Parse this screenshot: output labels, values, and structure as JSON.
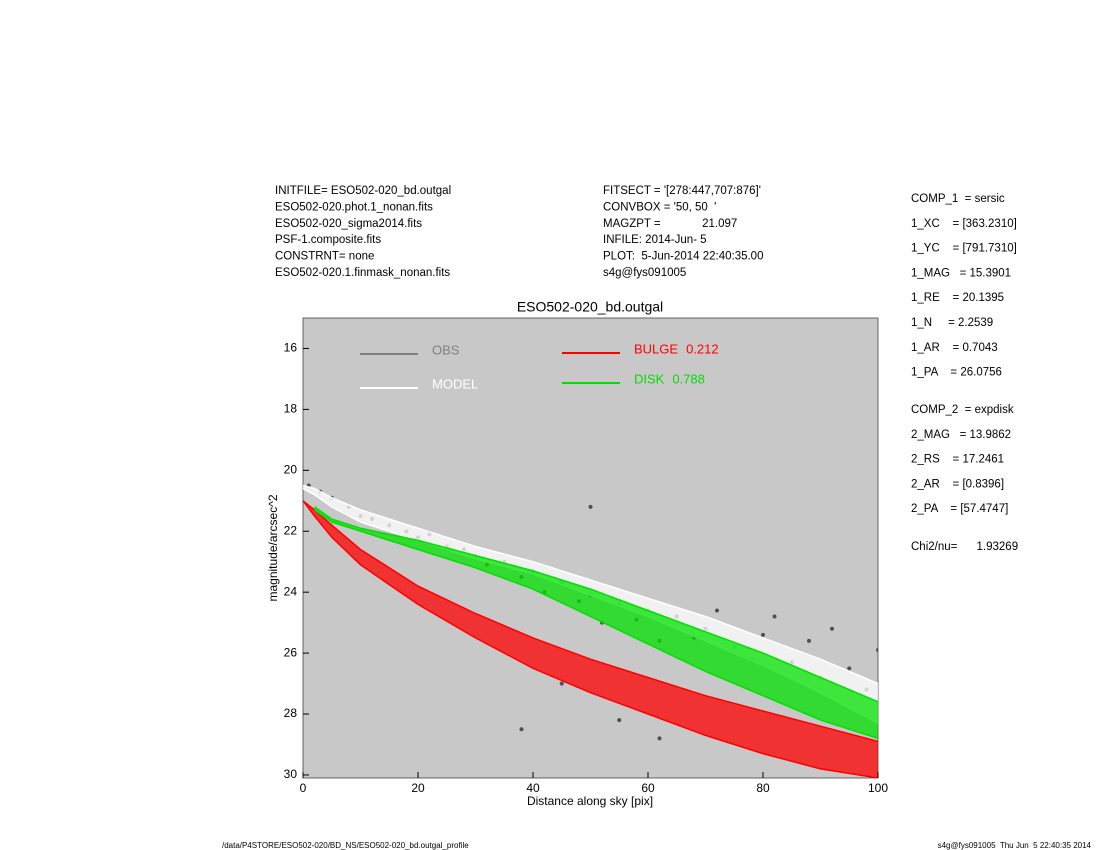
{
  "chart_data": {
    "type": "band-scatter",
    "title": "ESO502-020_bd.outgal",
    "x_label": "Distance along sky [pix]",
    "y_label": "magnitude/arcsec^2",
    "xlim": [
      0,
      100
    ],
    "xticks": [
      0,
      20,
      40,
      60,
      80,
      100
    ],
    "ylim": [
      15,
      30.1
    ],
    "yticks": [
      16,
      18,
      20,
      22,
      24,
      26,
      28,
      30
    ],
    "y_inverted": true,
    "background": "#c8c8c8",
    "series": [
      {
        "name": "OBS",
        "color": "#505050",
        "legend_color": "#808080",
        "style": "scatter",
        "x": [
          1,
          3,
          5,
          8,
          10,
          12,
          15,
          18,
          20,
          22,
          25,
          28,
          30,
          32,
          35,
          38,
          40,
          42,
          45,
          48,
          50,
          52,
          55,
          58,
          60,
          62,
          65,
          68,
          70,
          72,
          75,
          78,
          80,
          82,
          85,
          88,
          90,
          92,
          95,
          98,
          100,
          55,
          62,
          45,
          50,
          38
        ],
        "values": [
          20.5,
          20.7,
          20.9,
          21.2,
          21.5,
          21.6,
          21.8,
          22.0,
          22.2,
          22.1,
          22.5,
          22.6,
          22.8,
          23.1,
          23.0,
          23.5,
          23.3,
          24.0,
          23.7,
          24.3,
          24.1,
          25.0,
          24.4,
          24.9,
          24.6,
          25.6,
          24.8,
          25.5,
          25.2,
          24.6,
          25.8,
          26.2,
          25.4,
          24.8,
          26.3,
          25.6,
          26.8,
          25.2,
          26.5,
          27.2,
          25.9,
          28.2,
          28.8,
          27.0,
          21.2,
          28.5
        ]
      },
      {
        "name": "MODEL",
        "color": "#ffffff",
        "style": "band",
        "x": [
          0,
          2,
          5,
          10,
          20,
          30,
          40,
          50,
          60,
          70,
          80,
          90,
          100
        ],
        "bright": [
          20.5,
          20.6,
          20.9,
          21.3,
          21.9,
          22.5,
          23.0,
          23.6,
          24.2,
          24.8,
          25.5,
          26.2,
          27.0
        ],
        "faint": [
          20.6,
          20.8,
          21.2,
          21.7,
          22.3,
          22.9,
          23.4,
          24.1,
          24.8,
          25.6,
          26.4,
          27.3,
          28.3
        ]
      },
      {
        "name": "BULGE",
        "fraction": 0.212,
        "color": "#ff0000",
        "style": "band",
        "x": [
          0,
          2,
          5,
          10,
          20,
          30,
          40,
          50,
          60,
          70,
          80,
          90,
          100
        ],
        "bright": [
          21.0,
          21.3,
          21.8,
          22.6,
          23.8,
          24.7,
          25.5,
          26.2,
          26.8,
          27.4,
          27.9,
          28.4,
          28.9
        ],
        "faint": [
          21.0,
          21.5,
          22.2,
          23.1,
          24.4,
          25.5,
          26.5,
          27.3,
          28.0,
          28.7,
          29.3,
          29.8,
          30.1
        ]
      },
      {
        "name": "DISK",
        "fraction": 0.788,
        "color": "#00e000",
        "style": "band",
        "x": [
          0,
          2,
          5,
          10,
          20,
          30,
          40,
          50,
          60,
          70,
          80,
          90,
          100
        ],
        "bright": [
          null,
          21.2,
          21.6,
          21.9,
          22.3,
          22.8,
          23.3,
          23.9,
          24.6,
          25.3,
          26.0,
          26.8,
          27.6
        ],
        "faint": [
          null,
          21.3,
          21.7,
          22.0,
          22.6,
          23.2,
          23.9,
          24.8,
          25.7,
          26.6,
          27.4,
          28.2,
          28.8
        ]
      }
    ]
  },
  "header": {
    "left": [
      "INITFILE= ESO502-020_bd.outgal",
      "ESO502-020.phot.1_nonan.fits",
      "ESO502-020_sigma2014.fits",
      "PSF-1.composite.fits",
      "CONSTRNT= none",
      "ESO502-020.1.finmask_nonan.fits"
    ],
    "middle": [
      "FITSECT = '[278:447,707:876]'",
      "CONVBOX = '50, 50  '",
      "MAGZPT =             21.097",
      "INFILE: 2014-Jun- 5",
      "PLOT:  5-Jun-2014 22:40:35.00",
      "s4g@fys091005"
    ],
    "comp1": [
      "COMP_1  = sersic",
      "1_XC    = [363.2310]",
      "1_YC    = [791.7310]",
      "1_MAG   = 15.3901",
      "1_RE    = 20.1395",
      "1_N     = 2.2539",
      "1_AR    = 0.7043",
      "1_PA    = 26.0756"
    ],
    "comp2": [
      "COMP_2  = expdisk",
      "2_MAG   = 13.9862",
      "2_RS    = 17.2461",
      "2_AR    = [0.8396]",
      "2_PA    = [57.4747]"
    ],
    "chi2": "Chi2/nu=      1.93269"
  },
  "footer": {
    "path": "/data/P4STORE/ESO502-020/BD_NS/ESO502-020_bd.outgal_profile",
    "stamp": "s4g@fys091005  Thu Jun  5 22:40:35 2014"
  }
}
